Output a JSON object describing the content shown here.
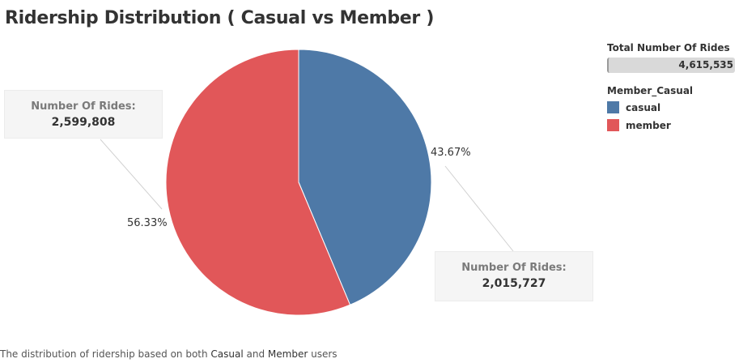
{
  "title": "Ridership Distribution ( Casual vs Member )",
  "caption": {
    "before": "The distribution of ridership based on both ",
    "casual": "Casual",
    "middle": " and ",
    "member": "Member",
    "after": " users"
  },
  "legend": {
    "total_title": "Total Number Of Rides",
    "total_value": "4,615,535",
    "title": "Member_Casual",
    "items": [
      {
        "label": "casual",
        "color": "#4e79a7"
      },
      {
        "label": "member",
        "color": "#e15759"
      }
    ]
  },
  "callouts": {
    "member": {
      "label": "Number Of Rides:",
      "value": "2,599,808"
    },
    "casual": {
      "label": "Number Of Rides:",
      "value": "2,015,727"
    }
  },
  "chart_data": {
    "type": "pie",
    "title": "Ridership Distribution ( Casual vs Member )",
    "slices": [
      {
        "label": "casual",
        "value": 2015727,
        "percent": "43.67%",
        "color": "#4e79a7"
      },
      {
        "label": "member",
        "value": 2599808,
        "percent": "56.33%",
        "color": "#e15759"
      }
    ],
    "start": "12 o'clock, clockwise",
    "legend_position": "right"
  }
}
